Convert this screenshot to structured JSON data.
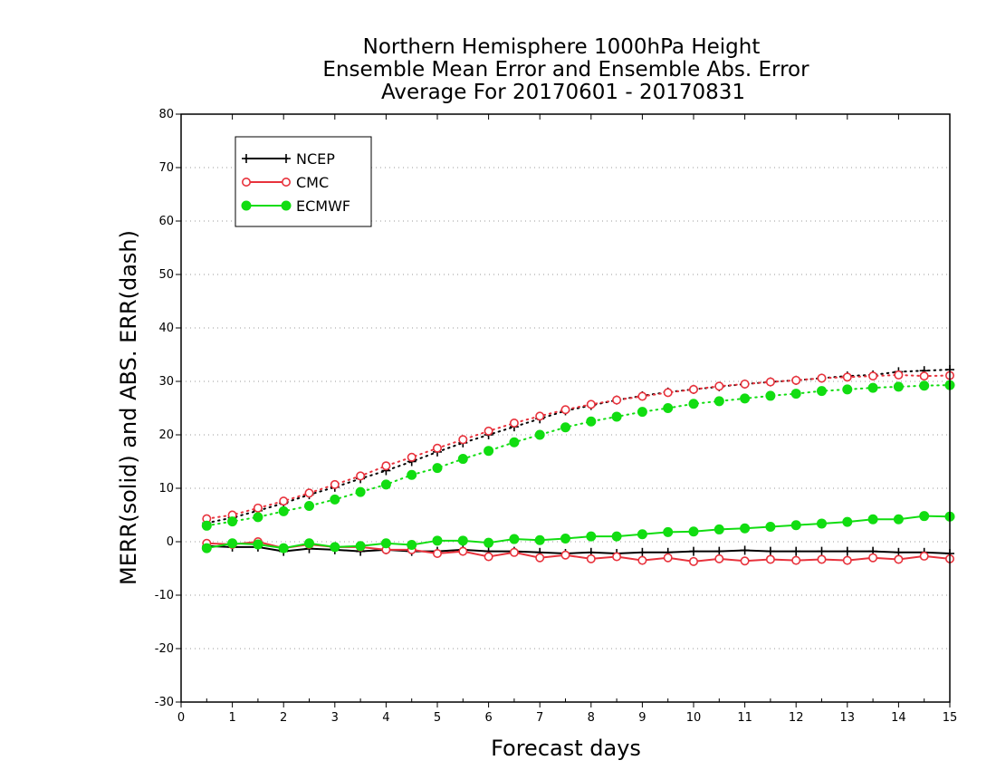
{
  "chart_data": {
    "type": "line",
    "title": [
      "Northern Hemisphere 1000hPa Height",
      "Ensemble Mean Error and Ensemble Abs. Error",
      "Average For 20170601 - 20170831"
    ],
    "xlabel": "Forecast days",
    "ylabel": "MERR(solid) and ABS. ERR(dash)",
    "xlim": [
      0,
      15
    ],
    "ylim": [
      -30,
      80
    ],
    "xticks": [
      0,
      1,
      2,
      3,
      4,
      5,
      6,
      7,
      8,
      9,
      10,
      11,
      12,
      13,
      14,
      15
    ],
    "yticks": [
      -30,
      -20,
      -10,
      0,
      10,
      20,
      30,
      40,
      50,
      60,
      70,
      80
    ],
    "grid": "horizontal dotted",
    "legend_position": "top-left",
    "x": [
      0.5,
      1,
      1.5,
      2,
      2.5,
      3,
      3.5,
      4,
      4.5,
      5,
      5.5,
      6,
      6.5,
      7,
      7.5,
      8,
      8.5,
      9,
      9.5,
      10,
      10.5,
      11,
      11.5,
      12,
      12.5,
      13,
      13.5,
      14,
      14.5,
      15
    ],
    "series": [
      {
        "name": "NCEP",
        "color": "#000000",
        "marker": "plus",
        "merr": [
          -0.8,
          -1.0,
          -1.0,
          -1.8,
          -1.3,
          -1.5,
          -1.8,
          -1.5,
          -1.8,
          -1.8,
          -1.5,
          -1.8,
          -1.8,
          -2.0,
          -2.2,
          -2.0,
          -2.2,
          -2.0,
          -2.0,
          -1.8,
          -1.8,
          -1.6,
          -1.8,
          -1.8,
          -1.8,
          -1.8,
          -1.8,
          -2.0,
          -2.0,
          -2.2
        ],
        "abs_err": [
          3.5,
          4.5,
          5.8,
          7.2,
          8.8,
          10.2,
          11.8,
          13.3,
          15.0,
          16.8,
          18.5,
          20.0,
          21.5,
          23.0,
          24.5,
          25.5,
          26.5,
          27.3,
          28.0,
          28.5,
          29.0,
          29.5,
          29.9,
          30.2,
          30.6,
          31.0,
          31.2,
          31.8,
          32.0,
          32.2
        ]
      },
      {
        "name": "CMC",
        "color": "#e8323c",
        "marker": "open-circle",
        "merr": [
          -0.3,
          -0.5,
          0.0,
          -1.2,
          -0.5,
          -1.0,
          -1.0,
          -1.5,
          -1.5,
          -2.2,
          -1.8,
          -2.8,
          -2.0,
          -3.0,
          -2.5,
          -3.2,
          -2.8,
          -3.5,
          -3.0,
          -3.7,
          -3.2,
          -3.6,
          -3.3,
          -3.5,
          -3.3,
          -3.5,
          -3.0,
          -3.3,
          -2.7,
          -3.2
        ],
        "abs_err": [
          4.3,
          5.0,
          6.3,
          7.6,
          9.1,
          10.7,
          12.3,
          14.2,
          15.8,
          17.5,
          19.1,
          20.7,
          22.2,
          23.5,
          24.7,
          25.7,
          26.5,
          27.2,
          27.9,
          28.5,
          29.1,
          29.5,
          29.9,
          30.2,
          30.6,
          30.8,
          31.0,
          31.2,
          31.0,
          31.1
        ]
      },
      {
        "name": "ECMWF",
        "color": "#11dd11",
        "marker": "filled-circle",
        "merr": [
          -1.2,
          -0.3,
          -0.5,
          -1.2,
          -0.3,
          -1.0,
          -0.8,
          -0.3,
          -0.6,
          0.2,
          0.2,
          -0.2,
          0.5,
          0.3,
          0.6,
          1.0,
          1.0,
          1.4,
          1.8,
          1.9,
          2.3,
          2.5,
          2.8,
          3.1,
          3.4,
          3.7,
          4.2,
          4.2,
          4.8,
          4.7
        ],
        "abs_err": [
          3.0,
          3.8,
          4.6,
          5.7,
          6.7,
          7.9,
          9.3,
          10.7,
          12.5,
          13.8,
          15.5,
          17.0,
          18.6,
          20.0,
          21.4,
          22.5,
          23.4,
          24.3,
          25.0,
          25.8,
          26.3,
          26.8,
          27.3,
          27.7,
          28.2,
          28.5,
          28.8,
          29.0,
          29.2,
          29.3
        ]
      }
    ]
  }
}
